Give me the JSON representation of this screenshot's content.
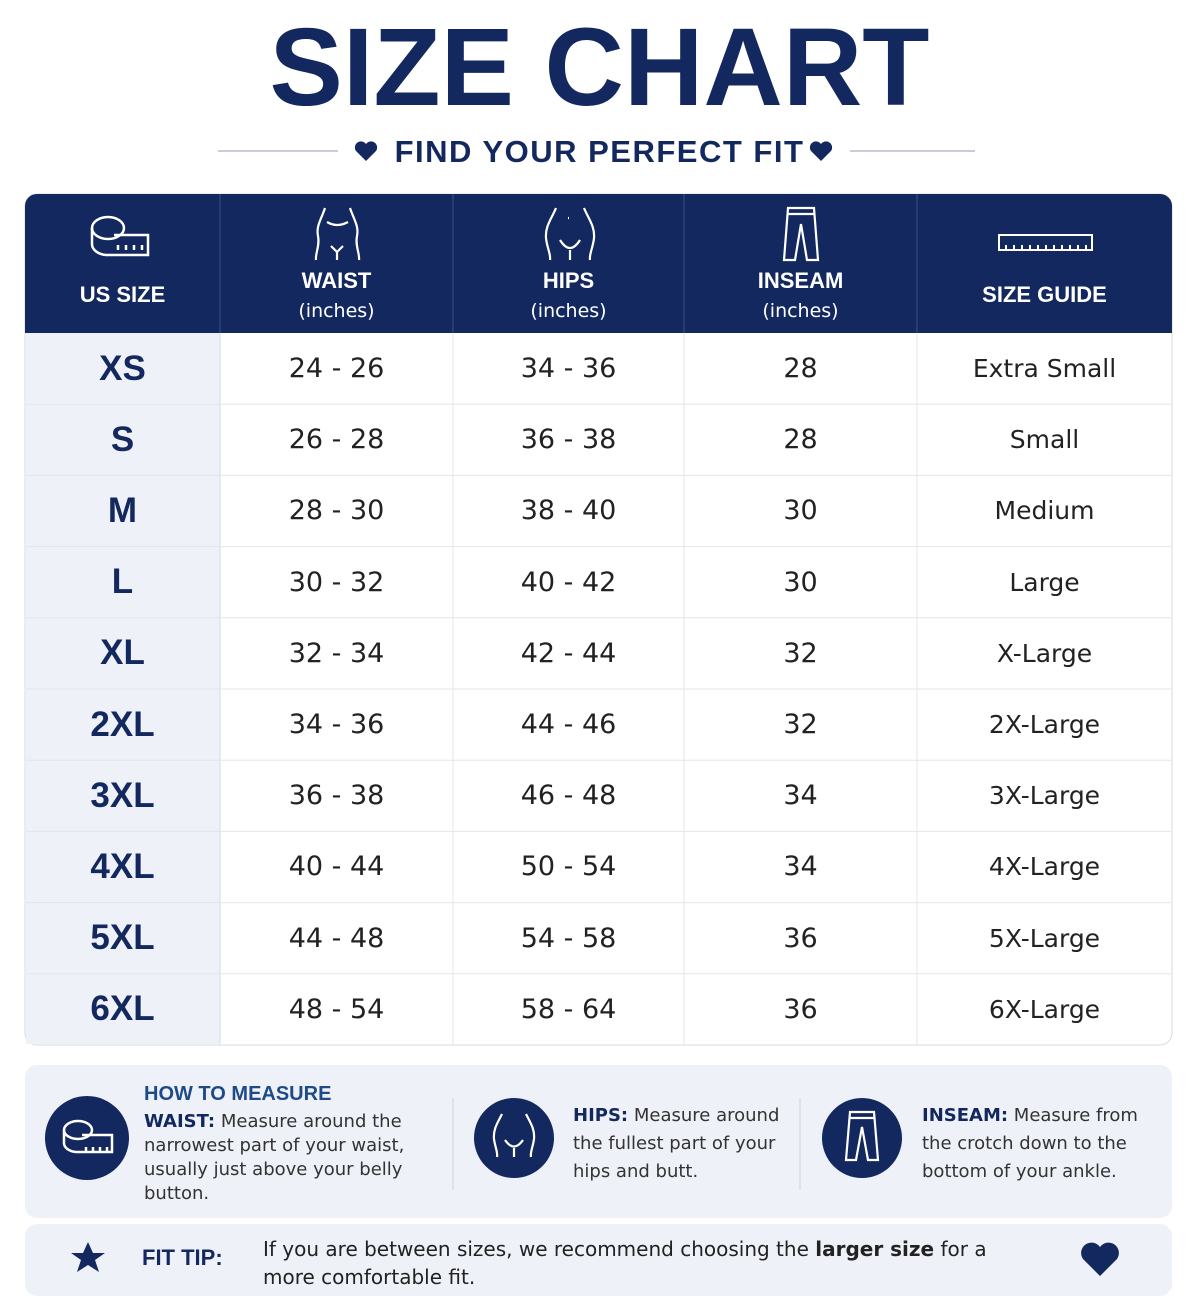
{
  "header": {
    "title": "SIZE CHART",
    "subtitle": "FIND YOUR PERFECT FIT"
  },
  "table": {
    "columns": [
      {
        "label": "US SIZE"
      },
      {
        "label": "WAIST",
        "unit": "(inches)"
      },
      {
        "label": "HIPS",
        "unit": "(inches)"
      },
      {
        "label": "INSEAM",
        "unit": "(inches)"
      },
      {
        "label": "SIZE GUIDE"
      }
    ],
    "rows": [
      [
        "XS",
        "24 - 26",
        "34 - 36",
        "28",
        "Extra Small"
      ],
      [
        "S",
        "26 - 28",
        "36 - 38",
        "28",
        "Small"
      ],
      [
        "M",
        "28 - 30",
        "38 - 40",
        "30",
        "Medium"
      ],
      [
        "L",
        "30 - 32",
        "40 - 42",
        "30",
        "Large"
      ],
      [
        "XL",
        "32 - 34",
        "42 - 44",
        "32",
        "X-Large"
      ],
      [
        "2XL",
        "34 - 36",
        "44 - 46",
        "32",
        "2X-Large"
      ],
      [
        "3XL",
        "36 - 38",
        "46 - 48",
        "34",
        "3X-Large"
      ],
      [
        "4XL",
        "40 - 44",
        "50 - 54",
        "34",
        "4X-Large"
      ],
      [
        "5XL",
        "44 - 48",
        "54 - 58",
        "36",
        "5X-Large"
      ],
      [
        "6XL",
        "48 - 54",
        "58 - 64",
        "36",
        "6X-Large"
      ]
    ]
  },
  "measure": {
    "heading": "HOW TO MEASURE",
    "items": [
      {
        "term": "WAIST:",
        "text": "Measure around the narrowest part of your waist, usually just above your belly button."
      },
      {
        "term": "HIPS:",
        "text": "Measure around the fullest part of your hips and butt."
      },
      {
        "term": "INSEAM:",
        "text": "Measure from the crotch down to the bottom of your ankle."
      }
    ]
  },
  "fit_tip": {
    "label": "FIT TIP:",
    "text": "If you are between sizes, we recommend choosing the",
    "emphasis": "larger size",
    "text_end": "for a more comfortable fit."
  }
}
